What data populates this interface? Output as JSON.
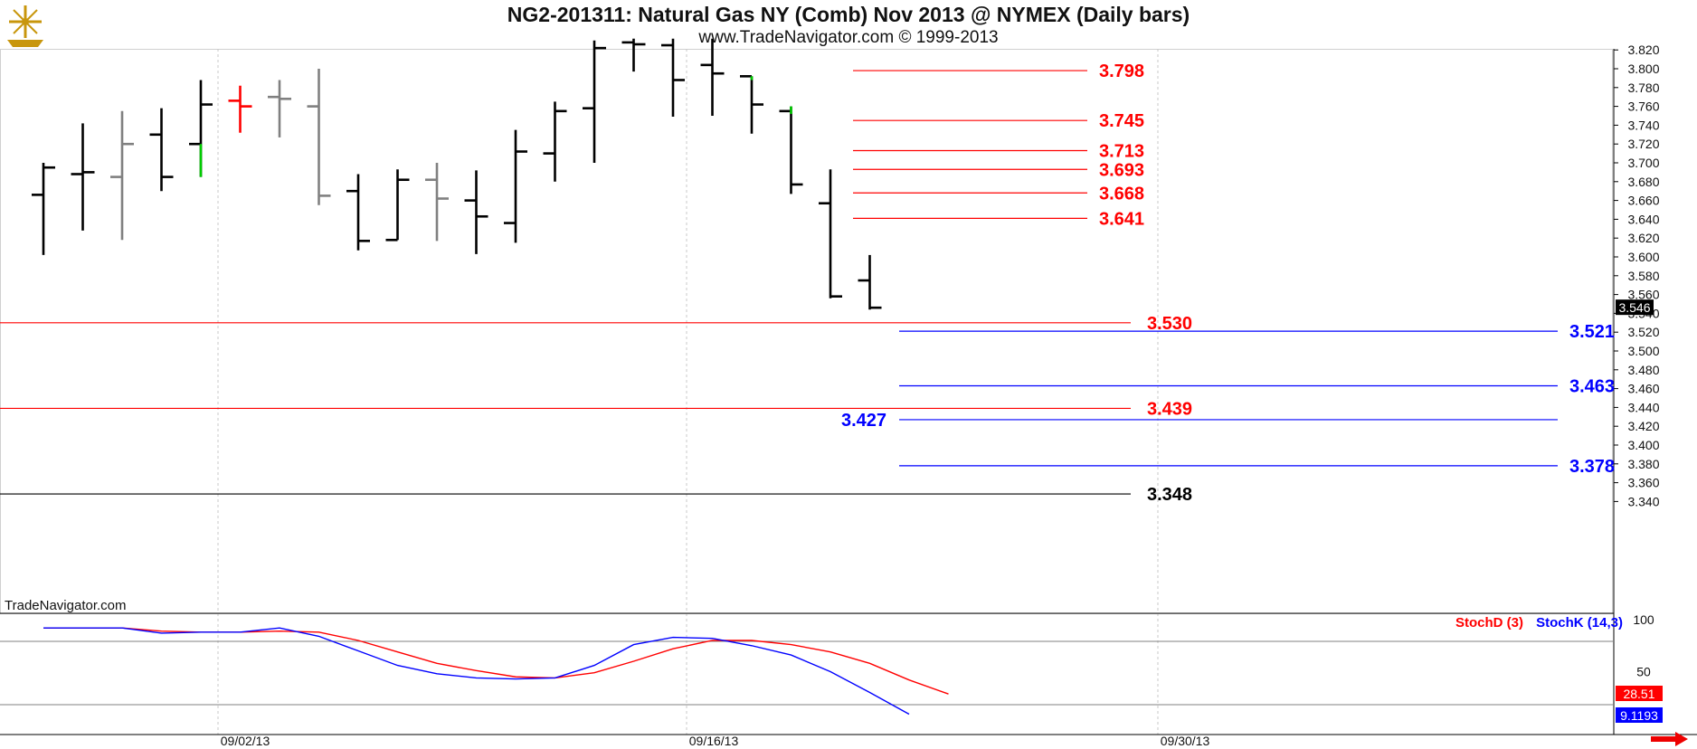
{
  "header": {
    "title": "NG2-201311:  Natural Gas NY (Comb) Nov 2013 @ NYMEX  (Daily bars)",
    "subtitle": "www.TradeNavigator.com © 1999-2013",
    "watermark": "TradeNavigator.com"
  },
  "colors": {
    "up_bar": "#000000",
    "down_bar": "#808080",
    "red": "#ff0000",
    "blue": "#0000ff",
    "green": "#00cc00",
    "grid": "#c8c8c8"
  },
  "chart_data": [
    {
      "type": "ohlc",
      "title": "NG2-201311:  Natural Gas NY (Comb) Nov 2013 @ NYMEX  (Daily bars)",
      "ylim": [
        3.33,
        3.83
      ],
      "y_ticks": [
        "3.820",
        "3.800",
        "3.780",
        "3.760",
        "3.740",
        "3.720",
        "3.700",
        "3.680",
        "3.660",
        "3.640",
        "3.620",
        "3.600",
        "3.580",
        "3.560",
        "3.540",
        "3.520",
        "3.500",
        "3.480",
        "3.460",
        "3.440",
        "3.420",
        "3.400",
        "3.380",
        "3.360",
        "3.340"
      ],
      "x_labels": [
        "09/02/13",
        "09/16/13",
        "09/30/13"
      ],
      "last_price": "3.546",
      "bars": [
        {
          "o": 3.666,
          "h": 3.7,
          "l": 3.602,
          "c": 3.695,
          "color": "black"
        },
        {
          "o": 3.688,
          "h": 3.742,
          "l": 3.628,
          "c": 3.69,
          "color": "black"
        },
        {
          "o": 3.685,
          "h": 3.755,
          "l": 3.618,
          "c": 3.72,
          "color": "gray"
        },
        {
          "o": 3.73,
          "h": 3.758,
          "l": 3.67,
          "c": 3.685,
          "color": "black"
        },
        {
          "o": 3.72,
          "h": 3.788,
          "l": 3.685,
          "c": 3.762,
          "color": "black"
        },
        {
          "o": 3.766,
          "h": 3.782,
          "l": 3.732,
          "c": 3.76,
          "color": "red"
        },
        {
          "o": 3.77,
          "h": 3.788,
          "l": 3.727,
          "c": 3.768,
          "color": "gray"
        },
        {
          "o": 3.76,
          "h": 3.8,
          "l": 3.655,
          "c": 3.665,
          "color": "gray"
        },
        {
          "o": 3.67,
          "h": 3.688,
          "l": 3.607,
          "c": 3.617,
          "color": "black"
        },
        {
          "o": 3.618,
          "h": 3.693,
          "l": 3.618,
          "c": 3.682,
          "color": "black"
        },
        {
          "o": 3.682,
          "h": 3.7,
          "l": 3.617,
          "c": 3.662,
          "color": "gray"
        },
        {
          "o": 3.66,
          "h": 3.692,
          "l": 3.603,
          "c": 3.643,
          "color": "black"
        },
        {
          "o": 3.636,
          "h": 3.735,
          "l": 3.615,
          "c": 3.712,
          "color": "black"
        },
        {
          "o": 3.71,
          "h": 3.765,
          "l": 3.68,
          "c": 3.755,
          "color": "black"
        },
        {
          "o": 3.758,
          "h": 3.83,
          "l": 3.7,
          "c": 3.822,
          "color": "black"
        },
        {
          "o": 3.828,
          "h": 3.832,
          "l": 3.797,
          "c": 3.826,
          "color": "black"
        },
        {
          "o": 3.825,
          "h": 3.832,
          "l": 3.749,
          "c": 3.788,
          "color": "black"
        },
        {
          "o": 3.804,
          "h": 3.832,
          "l": 3.75,
          "c": 3.795,
          "color": "black"
        },
        {
          "o": 3.792,
          "h": 3.792,
          "l": 3.731,
          "c": 3.762,
          "color": "black"
        },
        {
          "o": 3.755,
          "h": 3.76,
          "l": 3.667,
          "c": 3.677,
          "color": "black"
        },
        {
          "o": 3.657,
          "h": 3.693,
          "l": 3.556,
          "c": 3.558,
          "color": "black"
        },
        {
          "o": 3.575,
          "h": 3.602,
          "l": 3.544,
          "c": 3.546,
          "color": "black"
        }
      ],
      "levels": [
        {
          "value": 3.798,
          "label": "3.798",
          "color": "red"
        },
        {
          "value": 3.745,
          "label": "3.745",
          "color": "red"
        },
        {
          "value": 3.713,
          "label": "3.713",
          "color": "red"
        },
        {
          "value": 3.693,
          "label": "3.693",
          "color": "red"
        },
        {
          "value": 3.668,
          "label": "3.668",
          "color": "red"
        },
        {
          "value": 3.641,
          "label": "3.641",
          "color": "red"
        },
        {
          "value": 3.53,
          "label": "3.530",
          "color": "red"
        },
        {
          "value": 3.439,
          "label": "3.439",
          "color": "red"
        },
        {
          "value": 3.348,
          "label": "3.348",
          "color": "black"
        },
        {
          "value": 3.521,
          "label": "3.521",
          "color": "blue"
        },
        {
          "value": 3.463,
          "label": "3.463",
          "color": "blue"
        },
        {
          "value": 3.427,
          "label": "3.427",
          "color": "blue"
        },
        {
          "value": 3.378,
          "label": "3.378",
          "color": "blue"
        }
      ]
    },
    {
      "type": "line",
      "ylim": [
        0,
        100
      ],
      "y_ticks": [
        "100",
        "50"
      ],
      "series": [
        {
          "name": "StochD (3)",
          "color": "red",
          "last": "28.51",
          "values": [
            92,
            92,
            92,
            89,
            88,
            88,
            89,
            88,
            80,
            69,
            58,
            51,
            45,
            44,
            49,
            60,
            72,
            80,
            80,
            76,
            69,
            58,
            42,
            28.51
          ]
        },
        {
          "name": "StochK (14,3)",
          "color": "blue",
          "last": "9.1193",
          "values": [
            92,
            92,
            92,
            87,
            88,
            88,
            92,
            84,
            70,
            56,
            48,
            44,
            43,
            44,
            56,
            76,
            83,
            82,
            75,
            66,
            50,
            30,
            9.1193,
            null
          ]
        }
      ]
    }
  ]
}
